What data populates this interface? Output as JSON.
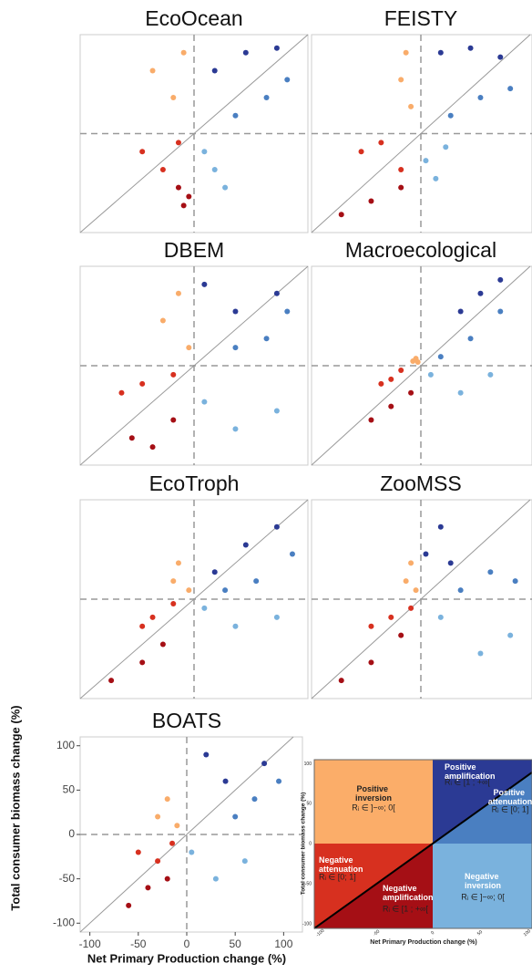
{
  "chart_data": [
    {
      "type": "scatter",
      "title": "EcoOcean",
      "xlim": [
        -110,
        110
      ],
      "ylim": [
        -110,
        110
      ],
      "series": [
        {
          "color": "#f9ac6a",
          "x": [
            -40,
            -20,
            -10
          ],
          "y": [
            70,
            40,
            90
          ]
        },
        {
          "color": "#d7301f",
          "x": [
            -50,
            -30,
            -15
          ],
          "y": [
            -20,
            -40,
            -10
          ]
        },
        {
          "color": "#a50f15",
          "x": [
            -15,
            -10,
            -5
          ],
          "y": [
            -60,
            -80,
            -70
          ]
        },
        {
          "color": "#2b3a94",
          "x": [
            20,
            50,
            80
          ],
          "y": [
            70,
            90,
            95
          ]
        },
        {
          "color": "#4a7fc1",
          "x": [
            40,
            70,
            90
          ],
          "y": [
            20,
            40,
            60
          ]
        },
        {
          "color": "#7ab2dd",
          "x": [
            10,
            20,
            30
          ],
          "y": [
            -20,
            -40,
            -60
          ]
        }
      ]
    },
    {
      "type": "scatter",
      "title": "FEISTY",
      "xlim": [
        -110,
        110
      ],
      "ylim": [
        -110,
        110
      ],
      "series": [
        {
          "color": "#f9ac6a",
          "x": [
            -20,
            -15,
            -10
          ],
          "y": [
            60,
            90,
            30
          ]
        },
        {
          "color": "#d7301f",
          "x": [
            -60,
            -40,
            -20
          ],
          "y": [
            -20,
            -10,
            -40
          ]
        },
        {
          "color": "#a50f15",
          "x": [
            -80,
            -50,
            -20
          ],
          "y": [
            -90,
            -75,
            -60
          ]
        },
        {
          "color": "#2b3a94",
          "x": [
            20,
            50,
            80
          ],
          "y": [
            90,
            95,
            85
          ]
        },
        {
          "color": "#4a7fc1",
          "x": [
            30,
            60,
            90
          ],
          "y": [
            20,
            40,
            50
          ]
        },
        {
          "color": "#7ab2dd",
          "x": [
            5,
            15,
            25
          ],
          "y": [
            -30,
            -50,
            -15
          ]
        }
      ]
    },
    {
      "type": "scatter",
      "title": "DBEM",
      "xlim": [
        -110,
        110
      ],
      "ylim": [
        -110,
        110
      ],
      "series": [
        {
          "color": "#f9ac6a",
          "x": [
            -30,
            -15,
            -5
          ],
          "y": [
            50,
            80,
            20
          ]
        },
        {
          "color": "#d7301f",
          "x": [
            -70,
            -50,
            -20
          ],
          "y": [
            -30,
            -20,
            -10
          ]
        },
        {
          "color": "#a50f15",
          "x": [
            -60,
            -40,
            -20
          ],
          "y": [
            -80,
            -90,
            -60
          ]
        },
        {
          "color": "#2b3a94",
          "x": [
            10,
            40,
            80
          ],
          "y": [
            90,
            60,
            80
          ]
        },
        {
          "color": "#4a7fc1",
          "x": [
            40,
            70,
            90
          ],
          "y": [
            20,
            30,
            60
          ]
        },
        {
          "color": "#7ab2dd",
          "x": [
            10,
            40,
            80
          ],
          "y": [
            -40,
            -70,
            -50
          ]
        }
      ]
    },
    {
      "type": "scatter",
      "title": "Macroecological",
      "xlim": [
        -110,
        110
      ],
      "ylim": [
        -110,
        110
      ],
      "series": [
        {
          "color": "#f9ac6a",
          "x": [
            -8,
            -5,
            -3
          ],
          "y": [
            5,
            8,
            4
          ]
        },
        {
          "color": "#d7301f",
          "x": [
            -40,
            -30,
            -20
          ],
          "y": [
            -20,
            -15,
            -5
          ]
        },
        {
          "color": "#a50f15",
          "x": [
            -50,
            -30,
            -10
          ],
          "y": [
            -60,
            -45,
            -30
          ]
        },
        {
          "color": "#2b3a94",
          "x": [
            40,
            60,
            80
          ],
          "y": [
            60,
            80,
            95
          ]
        },
        {
          "color": "#4a7fc1",
          "x": [
            20,
            50,
            80
          ],
          "y": [
            10,
            30,
            60
          ]
        },
        {
          "color": "#7ab2dd",
          "x": [
            10,
            40,
            70
          ],
          "y": [
            -10,
            -30,
            -10
          ]
        }
      ]
    },
    {
      "type": "scatter",
      "title": "EcoTroph",
      "xlim": [
        -110,
        110
      ],
      "ylim": [
        -110,
        110
      ],
      "series": [
        {
          "color": "#f9ac6a",
          "x": [
            -20,
            -15,
            -5
          ],
          "y": [
            20,
            40,
            10
          ]
        },
        {
          "color": "#d7301f",
          "x": [
            -50,
            -40,
            -20
          ],
          "y": [
            -30,
            -20,
            -5
          ]
        },
        {
          "color": "#a50f15",
          "x": [
            -80,
            -50,
            -30
          ],
          "y": [
            -90,
            -70,
            -50
          ]
        },
        {
          "color": "#2b3a94",
          "x": [
            20,
            50,
            80
          ],
          "y": [
            30,
            60,
            80
          ]
        },
        {
          "color": "#4a7fc1",
          "x": [
            30,
            60,
            95
          ],
          "y": [
            10,
            20,
            50
          ]
        },
        {
          "color": "#7ab2dd",
          "x": [
            10,
            40,
            80
          ],
          "y": [
            -10,
            -30,
            -20
          ]
        }
      ]
    },
    {
      "type": "scatter",
      "title": "ZooMSS",
      "xlim": [
        -110,
        110
      ],
      "ylim": [
        -110,
        110
      ],
      "series": [
        {
          "color": "#f9ac6a",
          "x": [
            -15,
            -10,
            -5
          ],
          "y": [
            20,
            40,
            10
          ]
        },
        {
          "color": "#d7301f",
          "x": [
            -50,
            -30,
            -10
          ],
          "y": [
            -30,
            -20,
            -10
          ]
        },
        {
          "color": "#a50f15",
          "x": [
            -80,
            -50,
            -20
          ],
          "y": [
            -90,
            -70,
            -40
          ]
        },
        {
          "color": "#2b3a94",
          "x": [
            5,
            20,
            30
          ],
          "y": [
            50,
            80,
            40
          ]
        },
        {
          "color": "#4a7fc1",
          "x": [
            40,
            70,
            95
          ],
          "y": [
            10,
            30,
            20
          ]
        },
        {
          "color": "#7ab2dd",
          "x": [
            20,
            60,
            90
          ],
          "y": [
            -20,
            -60,
            -40
          ]
        }
      ]
    },
    {
      "type": "scatter",
      "title": "BOATS",
      "xlim": [
        -110,
        110
      ],
      "ylim": [
        -110,
        110
      ],
      "xticks": [
        -100,
        -50,
        0,
        50,
        100
      ],
      "yticks": [
        -100,
        -50,
        0,
        50,
        100
      ],
      "xlabel": "Net Primary Production change (%)",
      "ylabel": "Total consumer biomass change (%)",
      "series": [
        {
          "color": "#f9ac6a",
          "x": [
            -30,
            -20,
            -10
          ],
          "y": [
            20,
            40,
            10
          ]
        },
        {
          "color": "#d7301f",
          "x": [
            -50,
            -30,
            -15
          ],
          "y": [
            -20,
            -30,
            -10
          ]
        },
        {
          "color": "#a50f15",
          "x": [
            -60,
            -40,
            -20
          ],
          "y": [
            -80,
            -60,
            -50
          ]
        },
        {
          "color": "#2b3a94",
          "x": [
            20,
            40,
            80
          ],
          "y": [
            90,
            60,
            80
          ]
        },
        {
          "color": "#4a7fc1",
          "x": [
            50,
            70,
            95
          ],
          "y": [
            20,
            40,
            60
          ]
        },
        {
          "color": "#7ab2dd",
          "x": [
            5,
            30,
            60
          ],
          "y": [
            -20,
            -50,
            -30
          ]
        }
      ]
    }
  ],
  "key_panel": {
    "ylabel": "Total consumer biomass change (%)",
    "xlabel": "Net Primary Production change (%)",
    "ticks": [
      -100,
      -50,
      0,
      50,
      100
    ],
    "regions": [
      {
        "name": "Positive inversion",
        "range": "Rᵢ ∈ ]−∞; 0["
      },
      {
        "name": "Positive amplification",
        "range": "Rᵢ ∈ [1 ; +∞["
      },
      {
        "name": "Positive attenuation",
        "range": "Rᵢ ∈ [0; 1]"
      },
      {
        "name": "Negative attenuation",
        "range": "Rᵢ ∈ [0; 1]"
      },
      {
        "name": "Negative amplification",
        "range": "Rᵢ ∈ [1 ; +∞["
      },
      {
        "name": "Negative inversion",
        "range": "Rᵢ ∈ ]−∞; 0["
      }
    ]
  }
}
